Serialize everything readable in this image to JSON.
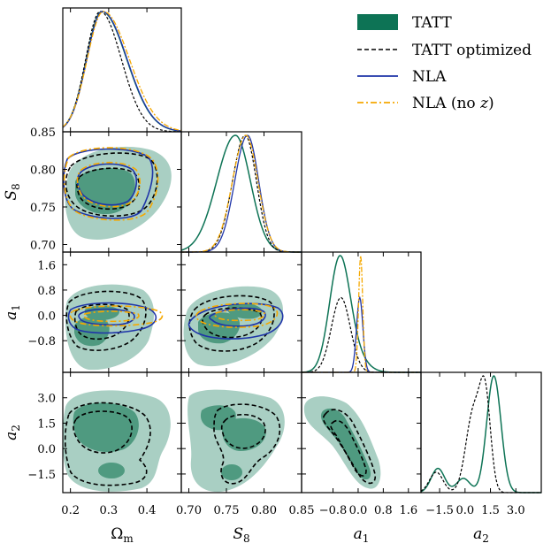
{
  "chart_data": {
    "type": "corner",
    "parameters": [
      {
        "name": "Omega_m",
        "label_text": "Ωm",
        "label_main": "Ω",
        "label_sub": "m",
        "range": [
          0.18,
          0.49
        ],
        "ticks": [
          0.2,
          0.3,
          0.4
        ],
        "tick_labels": [
          "0.2",
          "0.3",
          "0.4"
        ]
      },
      {
        "name": "S8",
        "label_text": "S8",
        "label_main": "S",
        "label_sub": "8",
        "range": [
          0.69,
          0.85
        ],
        "ticks": [
          0.7,
          0.75,
          0.8,
          0.85
        ],
        "tick_labels": [
          "0.70",
          "0.75",
          "0.80",
          "0.85"
        ]
      },
      {
        "name": "a1",
        "label_text": "a1",
        "label_main": "a",
        "label_sub": "1",
        "range": [
          -1.8,
          2.0
        ],
        "ticks": [
          -0.8,
          0.0,
          0.8,
          1.6
        ],
        "tick_labels": [
          "−0.8",
          "0.0",
          "0.8",
          "1.6"
        ]
      },
      {
        "name": "a2",
        "label_text": "a2",
        "label_main": "a",
        "label_sub": "2",
        "range": [
          -2.6,
          4.5
        ],
        "ticks": [
          -1.5,
          0.0,
          1.5,
          3.0
        ],
        "tick_labels": [
          "−1.5",
          "0.0",
          "1.5",
          "3.0"
        ]
      }
    ],
    "legend": [
      {
        "label": "TATT",
        "style": "filled",
        "color": "#0d7355"
      },
      {
        "label": "TATT optimized",
        "style": "dashed",
        "color": "#000000"
      },
      {
        "label": "NLA",
        "style": "solid",
        "color": "#1f35a8"
      },
      {
        "label": "NLA (no z)",
        "label_main": "NLA (no ",
        "label_var": "z",
        "label_end": ")",
        "style": "dashdot",
        "color": "#f5a800"
      }
    ],
    "legend_position": "top-right",
    "colors": {
      "tatt": "#0d7355",
      "tatt_fill": "#a9cfc3",
      "tatt_inner": "#4f9a80",
      "optimized": "#000000",
      "nla": "#1f35a8",
      "nla_noz": "#f5a800"
    },
    "series_1d": {
      "Omega_m": [
        {
          "name": "TATT",
          "peak_at": 0.282,
          "sigma_lo": 0.04,
          "sigma_hi": 0.065
        },
        {
          "name": "TATT optimized",
          "peak_at": 0.278,
          "sigma_lo": 0.038,
          "sigma_hi": 0.055
        },
        {
          "name": "NLA",
          "peak_at": 0.283,
          "sigma_lo": 0.04,
          "sigma_hi": 0.065
        },
        {
          "name": "NLA (no z)",
          "peak_at": 0.286,
          "sigma_lo": 0.042,
          "sigma_hi": 0.068
        }
      ],
      "S8": [
        {
          "name": "TATT",
          "peak_at": 0.762,
          "sigma_lo": 0.025,
          "sigma_hi": 0.02
        },
        {
          "name": "TATT optimized",
          "peak_at": 0.775,
          "sigma_lo": 0.017,
          "sigma_hi": 0.015
        },
        {
          "name": "NLA",
          "peak_at": 0.778,
          "sigma_lo": 0.017,
          "sigma_hi": 0.015
        },
        {
          "name": "NLA (no z)",
          "peak_at": 0.776,
          "sigma_lo": 0.018,
          "sigma_hi": 0.016
        }
      ],
      "a1": [
        {
          "name": "TATT",
          "components": [
            [
              -0.6,
              0.32,
              0.28
            ],
            [
              -0.2,
              0.4,
              0.05
            ]
          ]
        },
        {
          "name": "TATT optimized",
          "components": [
            [
              -0.55,
              0.3,
              0.3
            ]
          ]
        },
        {
          "name": "NLA",
          "components": [
            [
              0.05,
              0.1,
              0.64
            ]
          ]
        },
        {
          "name": "NLA (no z)",
          "components": [
            [
              0.08,
              0.065,
              1.0
            ]
          ]
        }
      ],
      "a2": [
        {
          "name": "TATT",
          "components": [
            [
              -1.6,
              0.4,
              0.17
            ],
            [
              -0.1,
              0.4,
              0.1
            ],
            [
              1.7,
              0.42,
              0.82
            ]
          ]
        },
        {
          "name": "TATT optimized",
          "components": [
            [
              -1.7,
              0.4,
              0.14
            ],
            [
              0.5,
              0.45,
              0.55
            ],
            [
              1.2,
              0.32,
              0.6
            ]
          ]
        }
      ]
    }
  }
}
